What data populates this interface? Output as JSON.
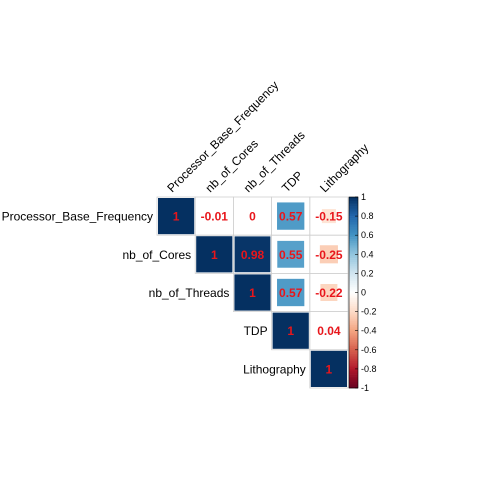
{
  "chart_data": {
    "type": "heatmap",
    "style": "correlation-matrix-upper-square",
    "variables": [
      "Processor_Base_Frequency",
      "nb_of_Cores",
      "nb_of_Threads",
      "TDP",
      "Lithography"
    ],
    "cells": [
      {
        "row": 0,
        "col": 0,
        "value": 1,
        "label": "1"
      },
      {
        "row": 0,
        "col": 1,
        "value": -0.01,
        "label": "-0.01"
      },
      {
        "row": 0,
        "col": 2,
        "value": 0,
        "label": "0"
      },
      {
        "row": 0,
        "col": 3,
        "value": 0.57,
        "label": "0.57"
      },
      {
        "row": 0,
        "col": 4,
        "value": -0.15,
        "label": "-0.15"
      },
      {
        "row": 1,
        "col": 1,
        "value": 1,
        "label": "1"
      },
      {
        "row": 1,
        "col": 2,
        "value": 0.98,
        "label": "0.98"
      },
      {
        "row": 1,
        "col": 3,
        "value": 0.55,
        "label": "0.55"
      },
      {
        "row": 1,
        "col": 4,
        "value": -0.25,
        "label": "-0.25"
      },
      {
        "row": 2,
        "col": 2,
        "value": 1,
        "label": "1"
      },
      {
        "row": 2,
        "col": 3,
        "value": 0.57,
        "label": "0.57"
      },
      {
        "row": 2,
        "col": 4,
        "value": -0.22,
        "label": "-0.22"
      },
      {
        "row": 3,
        "col": 3,
        "value": 1,
        "label": "1"
      },
      {
        "row": 3,
        "col": 4,
        "value": 0.04,
        "label": "0.04"
      },
      {
        "row": 4,
        "col": 4,
        "value": 1,
        "label": "1"
      }
    ],
    "colorbar": {
      "range": [
        -1,
        1
      ],
      "ticks": [
        "1",
        "0.8",
        "0.6",
        "0.4",
        "0.2",
        "0",
        "-0.2",
        "-0.4",
        "-0.6",
        "-0.8",
        "-1"
      ],
      "palette": [
        "#67001F",
        "#B2182B",
        "#D6604D",
        "#F4A582",
        "#FDDBC7",
        "#FFFFFF",
        "#D1E5F0",
        "#92C5DE",
        "#4393C3",
        "#2166AC",
        "#053061"
      ]
    },
    "label_color": "#E8161B",
    "grid": true
  }
}
